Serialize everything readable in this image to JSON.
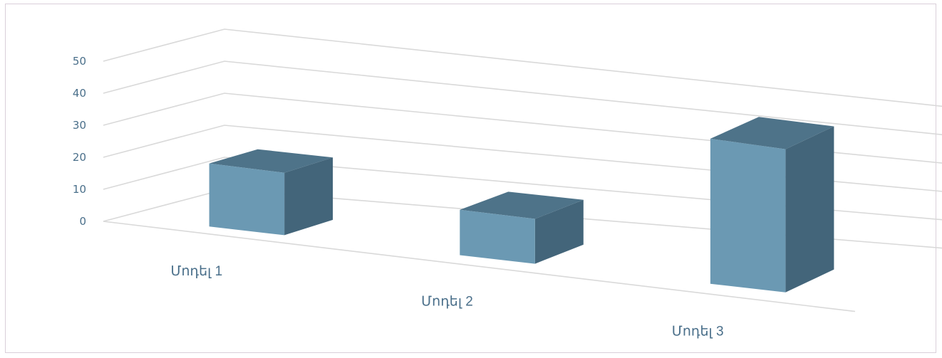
{
  "chart_data": {
    "type": "bar",
    "style": "3d-column",
    "categories": [
      "Մոդել 1",
      "Մոդել 2",
      "Մոդել 3"
    ],
    "values": [
      20,
      15,
      50
    ],
    "yticks": [
      "0",
      "10",
      "20",
      "30",
      "40",
      "50"
    ],
    "ylim": [
      0,
      50
    ],
    "grid": true,
    "legend": "none",
    "colors": {
      "front": "#6b99b3",
      "top": "#4e7389",
      "side": "#43657a",
      "grid": "#d9d9d9",
      "text": "#4a6f8a"
    }
  }
}
